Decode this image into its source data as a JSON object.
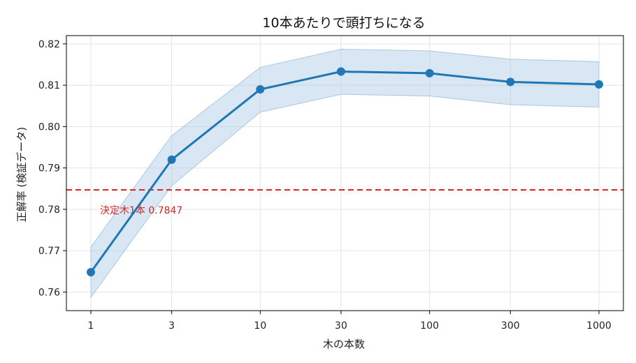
{
  "chart_data": {
    "type": "line",
    "title": "10本あたりで頭打ちになる",
    "xlabel": "木の本数",
    "ylabel": "正解率 (検証データ)",
    "x_scale": "log",
    "x": [
      1,
      3,
      10,
      30,
      100,
      300,
      1000
    ],
    "x_tick_labels": [
      "1",
      "3",
      "10",
      "30",
      "100",
      "300",
      "1000"
    ],
    "ylim": [
      0.7555,
      0.822
    ],
    "y_ticks": [
      0.76,
      0.77,
      0.78,
      0.79,
      0.8,
      0.81,
      0.82
    ],
    "y_tick_labels": [
      "0.76",
      "0.77",
      "0.78",
      "0.79",
      "0.80",
      "0.81",
      "0.82"
    ],
    "grid": true,
    "series": [
      {
        "values": [
          0.7648,
          0.792,
          0.809,
          0.8133,
          0.8129,
          0.8108,
          0.8102
        ],
        "lower": [
          0.7587,
          0.7857,
          0.8035,
          0.8078,
          0.8074,
          0.8053,
          0.8047
        ],
        "upper": [
          0.7709,
          0.7978,
          0.8143,
          0.8187,
          0.8183,
          0.8163,
          0.8157
        ],
        "color": "#1f77b4",
        "band_color": "#aac8e4"
      }
    ],
    "reference_line": {
      "y": 0.7847,
      "label": "決定木1本 0.7847",
      "color": "#d62728",
      "style": "dashed"
    }
  }
}
